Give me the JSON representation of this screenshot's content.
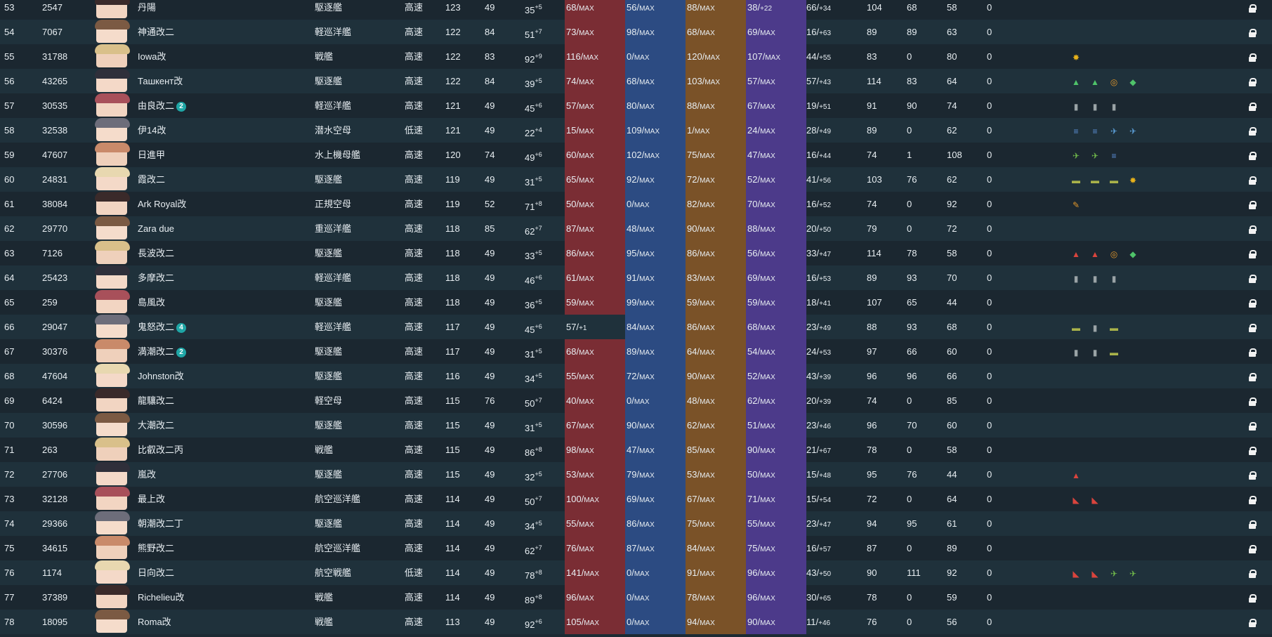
{
  "colors": {
    "firepower_bar": "#7a2d34",
    "torpedo_bar": "#2c4b82",
    "antiair_bar": "#7a5228",
    "armor_bar": "#4c3a8a"
  },
  "rows": [
    {
      "idx": "53",
      "id": "2547",
      "name": "丹陽",
      "type": "駆逐艦",
      "speed": "高速",
      "level": "123",
      "cond": "49",
      "luck": "35",
      "luck_mod": "+5",
      "fp": "68/",
      "fp_mod": "MAX",
      "tp": "56/",
      "tp_mod": "MAX",
      "aa": "88/",
      "aa_mod": "MAX",
      "ar": "38/",
      "ar_mod": "+22",
      "asw": "66/",
      "asw_mod": "+34",
      "los": "104",
      "ev": "68",
      "hp": "58",
      "exp": "0",
      "equip": []
    },
    {
      "idx": "54",
      "id": "7067",
      "name": "神通改二",
      "type": "軽巡洋艦",
      "speed": "高速",
      "level": "122",
      "cond": "84",
      "luck": "51",
      "luck_mod": "+7",
      "fp": "73/",
      "fp_mod": "MAX",
      "tp": "98/",
      "tp_mod": "MAX",
      "aa": "68/",
      "aa_mod": "MAX",
      "ar": "69/",
      "ar_mod": "MAX",
      "asw": "16/",
      "asw_mod": "+63",
      "los": "89",
      "ev": "89",
      "hp": "63",
      "exp": "0",
      "equip": []
    },
    {
      "idx": "55",
      "id": "31788",
      "name": "Iowa改",
      "type": "戦艦",
      "speed": "高速",
      "level": "122",
      "cond": "83",
      "luck": "92",
      "luck_mod": "+9",
      "fp": "116/",
      "fp_mod": "MAX",
      "tp": "0/",
      "tp_mod": "MAX",
      "aa": "120/",
      "aa_mod": "MAX",
      "ar": "107/",
      "ar_mod": "MAX",
      "asw": "44/",
      "asw_mod": "+55",
      "los": "83",
      "ev": "0",
      "hp": "80",
      "exp": "0",
      "equip": [
        "sunflower-icon"
      ]
    },
    {
      "idx": "56",
      "id": "43265",
      "name": "Ташкент改",
      "type": "駆逐艦",
      "speed": "高速",
      "level": "122",
      "cond": "84",
      "luck": "39",
      "luck_mod": "+5",
      "fp": "74/",
      "fp_mod": "MAX",
      "tp": "68/",
      "tp_mod": "MAX",
      "aa": "103/",
      "aa_mod": "MAX",
      "ar": "57/",
      "ar_mod": "MAX",
      "asw": "57/",
      "asw_mod": "+43",
      "los": "114",
      "ev": "83",
      "hp": "64",
      "exp": "0",
      "equip": [
        "gun-green-icon",
        "gun-green-icon",
        "radar-icon",
        "gun-green-plus-icon"
      ]
    },
    {
      "idx": "57",
      "id": "30535",
      "name": "由良改二",
      "badge": "2",
      "type": "軽巡洋艦",
      "speed": "高速",
      "level": "121",
      "cond": "49",
      "luck": "45",
      "luck_mod": "+6",
      "fp": "57/",
      "fp_mod": "MAX",
      "tp": "80/",
      "tp_mod": "MAX",
      "aa": "88/",
      "aa_mod": "MAX",
      "ar": "67/",
      "ar_mod": "MAX",
      "asw": "19/",
      "asw_mod": "+51",
      "los": "91",
      "ev": "90",
      "hp": "74",
      "exp": "0",
      "equip": [
        "drum-icon",
        "drum-icon",
        "drum-icon"
      ]
    },
    {
      "idx": "58",
      "id": "32538",
      "name": "伊14改",
      "type": "潜水空母",
      "speed": "低速",
      "level": "121",
      "cond": "49",
      "luck": "22",
      "luck_mod": "+4",
      "fp": "15/",
      "fp_mod": "MAX",
      "tp": "109/",
      "tp_mod": "MAX",
      "aa": "1/",
      "aa_mod": "MAX",
      "ar": "24/",
      "ar_mod": "MAX",
      "asw": "28/",
      "asw_mod": "+49",
      "los": "89",
      "ev": "0",
      "hp": "62",
      "exp": "0",
      "equip": [
        "torpedo-icon",
        "torpedo-icon",
        "seaplane-icon",
        "seaplane-plus-icon"
      ]
    },
    {
      "idx": "59",
      "id": "47607",
      "name": "日進甲",
      "type": "水上機母艦",
      "speed": "高速",
      "level": "120",
      "cond": "74",
      "luck": "49",
      "luck_mod": "+6",
      "fp": "60/",
      "fp_mod": "MAX",
      "tp": "102/",
      "tp_mod": "MAX",
      "aa": "75/",
      "aa_mod": "MAX",
      "ar": "47/",
      "ar_mod": "MAX",
      "asw": "16/",
      "asw_mod": "+44",
      "los": "74",
      "ev": "1",
      "hp": "108",
      "exp": "0",
      "equip": [
        "plane-green-icon",
        "plane-green-icon",
        "torpedo-icon"
      ]
    },
    {
      "idx": "60",
      "id": "24831",
      "name": "霞改二",
      "type": "駆逐艦",
      "speed": "高速",
      "level": "119",
      "cond": "49",
      "luck": "31",
      "luck_mod": "+5",
      "fp": "65/",
      "fp_mod": "MAX",
      "tp": "92/",
      "tp_mod": "MAX",
      "aa": "72/",
      "aa_mod": "MAX",
      "ar": "52/",
      "ar_mod": "MAX",
      "asw": "41/",
      "asw_mod": "+56",
      "los": "103",
      "ev": "76",
      "hp": "62",
      "exp": "0",
      "equip": [
        "landing-craft-icon",
        "landing-craft-icon",
        "landing-craft-icon",
        "sunflower-icon"
      ]
    },
    {
      "idx": "61",
      "id": "38084",
      "name": "Ark Royal改",
      "type": "正規空母",
      "speed": "高速",
      "level": "119",
      "cond": "52",
      "luck": "71",
      "luck_mod": "+8",
      "fp": "50/",
      "fp_mod": "MAX",
      "tp": "0/",
      "tp_mod": "MAX",
      "aa": "82/",
      "aa_mod": "MAX",
      "ar": "70/",
      "ar_mod": "MAX",
      "asw": "16/",
      "asw_mod": "+52",
      "los": "74",
      "ev": "0",
      "hp": "92",
      "exp": "0",
      "equip": [
        "wrench-icon"
      ]
    },
    {
      "idx": "62",
      "id": "29770",
      "name": "Zara due",
      "type": "重巡洋艦",
      "speed": "高速",
      "level": "118",
      "cond": "85",
      "luck": "62",
      "luck_mod": "+7",
      "fp": "87/",
      "fp_mod": "MAX",
      "tp": "48/",
      "tp_mod": "MAX",
      "aa": "90/",
      "aa_mod": "MAX",
      "ar": "88/",
      "ar_mod": "MAX",
      "asw": "20/",
      "asw_mod": "+50",
      "los": "79",
      "ev": "0",
      "hp": "72",
      "exp": "0",
      "equip": []
    },
    {
      "idx": "63",
      "id": "7126",
      "name": "長波改二",
      "type": "駆逐艦",
      "speed": "高速",
      "level": "118",
      "cond": "49",
      "luck": "33",
      "luck_mod": "+5",
      "fp": "86/",
      "fp_mod": "MAX",
      "tp": "95/",
      "tp_mod": "MAX",
      "aa": "86/",
      "aa_mod": "MAX",
      "ar": "56/",
      "ar_mod": "MAX",
      "asw": "33/",
      "asw_mod": "+47",
      "los": "114",
      "ev": "78",
      "hp": "58",
      "exp": "0",
      "equip": [
        "gun-red-icon",
        "gun-red-icon",
        "radar-icon",
        "gun-green-plus-icon"
      ]
    },
    {
      "idx": "64",
      "id": "25423",
      "name": "多摩改二",
      "type": "軽巡洋艦",
      "speed": "高速",
      "level": "118",
      "cond": "49",
      "luck": "46",
      "luck_mod": "+6",
      "fp": "61/",
      "fp_mod": "MAX",
      "tp": "91/",
      "tp_mod": "MAX",
      "aa": "83/",
      "aa_mod": "MAX",
      "ar": "69/",
      "ar_mod": "MAX",
      "asw": "16/",
      "asw_mod": "+53",
      "los": "89",
      "ev": "93",
      "hp": "70",
      "exp": "0",
      "equip": [
        "drum-icon",
        "drum-icon",
        "drum-icon"
      ]
    },
    {
      "idx": "65",
      "id": "259",
      "name": "島風改",
      "type": "駆逐艦",
      "speed": "高速",
      "level": "118",
      "cond": "49",
      "luck": "36",
      "luck_mod": "+5",
      "fp": "59/",
      "fp_mod": "MAX",
      "tp": "99/",
      "tp_mod": "MAX",
      "aa": "59/",
      "aa_mod": "MAX",
      "ar": "59/",
      "ar_mod": "MAX",
      "asw": "18/",
      "asw_mod": "+41",
      "los": "107",
      "ev": "65",
      "hp": "44",
      "exp": "0",
      "equip": []
    },
    {
      "idx": "66",
      "id": "29047",
      "name": "鬼怒改二",
      "badge": "4",
      "type": "軽巡洋艦",
      "speed": "高速",
      "level": "117",
      "cond": "49",
      "luck": "45",
      "luck_mod": "+6",
      "fp": "57/",
      "fp_mod": "+1",
      "tp": "84/",
      "tp_mod": "MAX",
      "aa": "86/",
      "aa_mod": "MAX",
      "ar": "68/",
      "ar_mod": "MAX",
      "asw": "23/",
      "asw_mod": "+49",
      "los": "88",
      "ev": "93",
      "hp": "68",
      "exp": "0",
      "fp_nobar": true,
      "equip": [
        "landing-craft-icon",
        "drum-icon",
        "landing-craft-icon"
      ]
    },
    {
      "idx": "67",
      "id": "30376",
      "name": "満潮改二",
      "badge": "2",
      "type": "駆逐艦",
      "speed": "高速",
      "level": "117",
      "cond": "49",
      "luck": "31",
      "luck_mod": "+5",
      "fp": "68/",
      "fp_mod": "MAX",
      "tp": "89/",
      "tp_mod": "MAX",
      "aa": "64/",
      "aa_mod": "MAX",
      "ar": "54/",
      "ar_mod": "MAX",
      "asw": "24/",
      "asw_mod": "+53",
      "los": "97",
      "ev": "66",
      "hp": "60",
      "exp": "0",
      "equip": [
        "drum-icon",
        "drum-icon",
        "landing-craft-icon"
      ]
    },
    {
      "idx": "68",
      "id": "47604",
      "name": "Johnston改",
      "type": "駆逐艦",
      "speed": "高速",
      "level": "116",
      "cond": "49",
      "luck": "34",
      "luck_mod": "+5",
      "fp": "55/",
      "fp_mod": "MAX",
      "tp": "72/",
      "tp_mod": "MAX",
      "aa": "90/",
      "aa_mod": "MAX",
      "ar": "52/",
      "ar_mod": "MAX",
      "asw": "43/",
      "asw_mod": "+39",
      "los": "96",
      "ev": "96",
      "hp": "66",
      "exp": "0",
      "equip": []
    },
    {
      "idx": "69",
      "id": "6424",
      "name": "龍驤改二",
      "type": "軽空母",
      "speed": "高速",
      "level": "115",
      "cond": "76",
      "luck": "50",
      "luck_mod": "+7",
      "fp": "40/",
      "fp_mod": "MAX",
      "tp": "0/",
      "tp_mod": "MAX",
      "aa": "48/",
      "aa_mod": "MAX",
      "ar": "62/",
      "ar_mod": "MAX",
      "asw": "20/",
      "asw_mod": "+39",
      "los": "74",
      "ev": "0",
      "hp": "85",
      "exp": "0",
      "equip": []
    },
    {
      "idx": "70",
      "id": "30596",
      "name": "大潮改二",
      "type": "駆逐艦",
      "speed": "高速",
      "level": "115",
      "cond": "49",
      "luck": "31",
      "luck_mod": "+5",
      "fp": "67/",
      "fp_mod": "MAX",
      "tp": "90/",
      "tp_mod": "MAX",
      "aa": "62/",
      "aa_mod": "MAX",
      "ar": "51/",
      "ar_mod": "MAX",
      "asw": "23/",
      "asw_mod": "+46",
      "los": "96",
      "ev": "70",
      "hp": "60",
      "exp": "0",
      "equip": []
    },
    {
      "idx": "71",
      "id": "263",
      "name": "比叡改二丙",
      "type": "戦艦",
      "speed": "高速",
      "level": "115",
      "cond": "49",
      "luck": "86",
      "luck_mod": "+8",
      "fp": "98/",
      "fp_mod": "MAX",
      "tp": "47/",
      "tp_mod": "MAX",
      "aa": "85/",
      "aa_mod": "MAX",
      "ar": "90/",
      "ar_mod": "MAX",
      "asw": "21/",
      "asw_mod": "+67",
      "los": "78",
      "ev": "0",
      "hp": "58",
      "exp": "0",
      "equip": []
    },
    {
      "idx": "72",
      "id": "27706",
      "name": "嵐改",
      "type": "駆逐艦",
      "speed": "高速",
      "level": "115",
      "cond": "49",
      "luck": "32",
      "luck_mod": "+5",
      "fp": "53/",
      "fp_mod": "MAX",
      "tp": "79/",
      "tp_mod": "MAX",
      "aa": "53/",
      "aa_mod": "MAX",
      "ar": "50/",
      "ar_mod": "MAX",
      "asw": "15/",
      "asw_mod": "+48",
      "los": "95",
      "ev": "76",
      "hp": "44",
      "exp": "0",
      "equip": [
        "gun-red-icon"
      ]
    },
    {
      "idx": "73",
      "id": "32128",
      "name": "最上改",
      "type": "航空巡洋艦",
      "speed": "高速",
      "level": "114",
      "cond": "49",
      "luck": "50",
      "luck_mod": "+7",
      "fp": "100/",
      "fp_mod": "MAX",
      "tp": "69/",
      "tp_mod": "MAX",
      "aa": "67/",
      "aa_mod": "MAX",
      "ar": "71/",
      "ar_mod": "MAX",
      "asw": "15/",
      "asw_mod": "+54",
      "los": "72",
      "ev": "0",
      "hp": "64",
      "exp": "0",
      "equip": [
        "big-gun-red-icon",
        "big-gun-red-icon"
      ]
    },
    {
      "idx": "74",
      "id": "29366",
      "name": "朝潮改二丁",
      "type": "駆逐艦",
      "speed": "高速",
      "level": "114",
      "cond": "49",
      "luck": "34",
      "luck_mod": "+5",
      "fp": "55/",
      "fp_mod": "MAX",
      "tp": "86/",
      "tp_mod": "MAX",
      "aa": "75/",
      "aa_mod": "MAX",
      "ar": "55/",
      "ar_mod": "MAX",
      "asw": "23/",
      "asw_mod": "+47",
      "los": "94",
      "ev": "95",
      "hp": "61",
      "exp": "0",
      "equip": []
    },
    {
      "idx": "75",
      "id": "34615",
      "name": "熊野改二",
      "type": "航空巡洋艦",
      "speed": "高速",
      "level": "114",
      "cond": "49",
      "luck": "62",
      "luck_mod": "+7",
      "fp": "76/",
      "fp_mod": "MAX",
      "tp": "87/",
      "tp_mod": "MAX",
      "aa": "84/",
      "aa_mod": "MAX",
      "ar": "75/",
      "ar_mod": "MAX",
      "asw": "16/",
      "asw_mod": "+57",
      "los": "87",
      "ev": "0",
      "hp": "89",
      "exp": "0",
      "equip": []
    },
    {
      "idx": "76",
      "id": "1174",
      "name": "日向改二",
      "type": "航空戦艦",
      "speed": "低速",
      "level": "114",
      "cond": "49",
      "luck": "78",
      "luck_mod": "+8",
      "fp": "141/",
      "fp_mod": "MAX",
      "tp": "0/",
      "tp_mod": "MAX",
      "aa": "91/",
      "aa_mod": "MAX",
      "ar": "96/",
      "ar_mod": "MAX",
      "asw": "43/",
      "asw_mod": "+50",
      "los": "90",
      "ev": "111",
      "hp": "92",
      "exp": "0",
      "equip": [
        "big-gun-red-icon",
        "big-gun-red-icon",
        "plane-green-icon",
        "plane-green-icon"
      ]
    },
    {
      "idx": "77",
      "id": "37389",
      "name": "Richelieu改",
      "type": "戦艦",
      "speed": "高速",
      "level": "114",
      "cond": "49",
      "luck": "89",
      "luck_mod": "+8",
      "fp": "96/",
      "fp_mod": "MAX",
      "tp": "0/",
      "tp_mod": "MAX",
      "aa": "78/",
      "aa_mod": "MAX",
      "ar": "96/",
      "ar_mod": "MAX",
      "asw": "30/",
      "asw_mod": "+65",
      "los": "78",
      "ev": "0",
      "hp": "59",
      "exp": "0",
      "equip": []
    },
    {
      "idx": "78",
      "id": "18095",
      "name": "Roma改",
      "type": "戦艦",
      "speed": "高速",
      "level": "113",
      "cond": "49",
      "luck": "92",
      "luck_mod": "+6",
      "fp": "105/",
      "fp_mod": "MAX",
      "tp": "0/",
      "tp_mod": "MAX",
      "aa": "94/",
      "aa_mod": "MAX",
      "ar": "90/",
      "ar_mod": "MAX",
      "asw": "11/",
      "asw_mod": "+46",
      "los": "76",
      "ev": "0",
      "hp": "56",
      "exp": "0",
      "equip": []
    }
  ]
}
